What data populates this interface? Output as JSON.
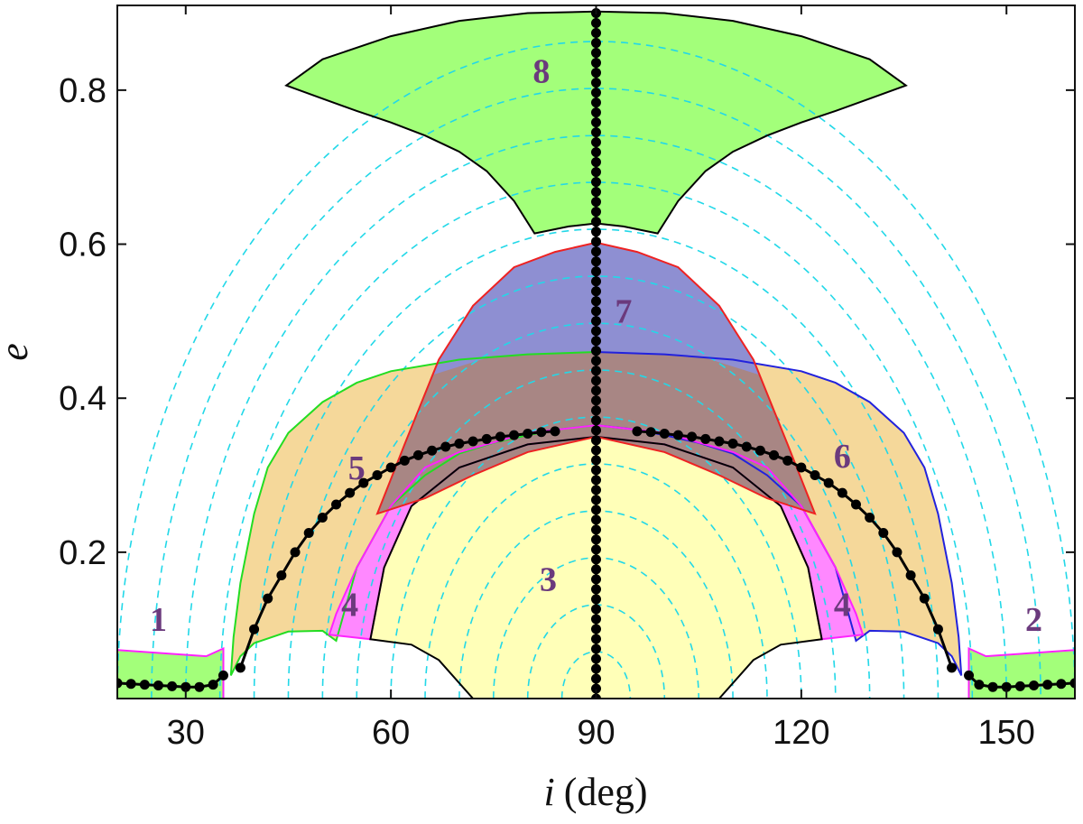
{
  "chart_data": {
    "type": "area",
    "title": "",
    "xlabel": {
      "var": "i",
      "unit": "(deg)"
    },
    "ylabel": "e",
    "xlim": [
      20,
      160
    ],
    "ylim": [
      0.01,
      0.91
    ],
    "xticks": [
      30,
      60,
      90,
      120,
      150
    ],
    "yticks": [
      0.2,
      0.4,
      0.6,
      0.8
    ],
    "grid": false,
    "legend": "none",
    "colors": {
      "green_fill": "#a3ff7a",
      "orange_fill": "#f5d89a",
      "magenta_fill": "#ff88ff",
      "yellow_fill": "#ffffb8",
      "blue_fill": "#8e8fd2",
      "brown_fill": "#a88684",
      "contour": "#22d8e8",
      "green_line": "#22dd22",
      "blue_line": "#2222dd",
      "red_line": "#ee2222",
      "magenta_line": "#ff22ff",
      "marker": "#000000",
      "label": "#6b3a7d"
    },
    "region_labels": [
      {
        "text": "1",
        "x": 26,
        "y": 0.098
      },
      {
        "text": "2",
        "x": 154,
        "y": 0.098
      },
      {
        "text": "3",
        "x": 83,
        "y": 0.15
      },
      {
        "text": "4",
        "x": 54,
        "y": 0.117
      },
      {
        "text": "4",
        "x": 126,
        "y": 0.117
      },
      {
        "text": "5",
        "x": 55,
        "y": 0.295
      },
      {
        "text": "6",
        "x": 126,
        "y": 0.31
      },
      {
        "text": "7",
        "x": 94,
        "y": 0.498
      },
      {
        "text": "8",
        "x": 82,
        "y": 0.81
      }
    ],
    "regions": [
      {
        "name": "region-8",
        "fill": "#a3ff7a",
        "stroke": "#000000",
        "points": [
          [
            44.7,
            0.806
          ],
          [
            50,
            0.789
          ],
          [
            55,
            0.773
          ],
          [
            60,
            0.758
          ],
          [
            65,
            0.741
          ],
          [
            70,
            0.72
          ],
          [
            74,
            0.695
          ],
          [
            78,
            0.656
          ],
          [
            81,
            0.614
          ],
          [
            86,
            0.623
          ],
          [
            90,
            0.627
          ],
          [
            94,
            0.623
          ],
          [
            99,
            0.614
          ],
          [
            102,
            0.656
          ],
          [
            106,
            0.695
          ],
          [
            110,
            0.72
          ],
          [
            115,
            0.741
          ],
          [
            120,
            0.758
          ],
          [
            125,
            0.773
          ],
          [
            130,
            0.789
          ],
          [
            135.3,
            0.806
          ],
          [
            130,
            0.84
          ],
          [
            120,
            0.87
          ],
          [
            110,
            0.89
          ],
          [
            100,
            0.9
          ],
          [
            90,
            0.902
          ],
          [
            80,
            0.9
          ],
          [
            70,
            0.89
          ],
          [
            60,
            0.87
          ],
          [
            50,
            0.84
          ]
        ]
      },
      {
        "name": "region-5",
        "fill": "#f5d89a",
        "stroke": "#22dd22",
        "points": [
          [
            36.6,
            0.04
          ],
          [
            38,
            0.065
          ],
          [
            40,
            0.082
          ],
          [
            45,
            0.097
          ],
          [
            50,
            0.098
          ],
          [
            52,
            0.085
          ],
          [
            55,
            0.18
          ],
          [
            60,
            0.26
          ],
          [
            65,
            0.3
          ],
          [
            70,
            0.328
          ],
          [
            75,
            0.342
          ],
          [
            80,
            0.352
          ],
          [
            85,
            0.36
          ],
          [
            90,
            0.365
          ],
          [
            90,
            0.46
          ],
          [
            80,
            0.457
          ],
          [
            70,
            0.45
          ],
          [
            60,
            0.435
          ],
          [
            55,
            0.42
          ],
          [
            50,
            0.395
          ],
          [
            45,
            0.355
          ],
          [
            42,
            0.31
          ],
          [
            40,
            0.25
          ],
          [
            38,
            0.16
          ],
          [
            37,
            0.09
          ]
        ]
      },
      {
        "name": "region-6",
        "fill": "#f5d89a",
        "stroke": "#2222dd",
        "points": [
          [
            90,
            0.46
          ],
          [
            100,
            0.457
          ],
          [
            110,
            0.45
          ],
          [
            120,
            0.435
          ],
          [
            125,
            0.42
          ],
          [
            130,
            0.395
          ],
          [
            135,
            0.355
          ],
          [
            138,
            0.31
          ],
          [
            140,
            0.25
          ],
          [
            142,
            0.16
          ],
          [
            143,
            0.09
          ],
          [
            143.4,
            0.04
          ],
          [
            142,
            0.065
          ],
          [
            140,
            0.082
          ],
          [
            135,
            0.097
          ],
          [
            130,
            0.098
          ],
          [
            128,
            0.085
          ],
          [
            125,
            0.18
          ],
          [
            120,
            0.26
          ],
          [
            115,
            0.3
          ],
          [
            110,
            0.328
          ],
          [
            105,
            0.342
          ],
          [
            100,
            0.352
          ],
          [
            95,
            0.36
          ],
          [
            90,
            0.365
          ]
        ]
      },
      {
        "name": "region-4-left",
        "fill": "#ff88ff",
        "stroke": "#ff22ff",
        "points": [
          [
            51,
            0.093
          ],
          [
            57,
            0.087
          ],
          [
            59,
            0.18
          ],
          [
            63,
            0.26
          ],
          [
            70,
            0.31
          ],
          [
            80,
            0.34
          ],
          [
            90,
            0.35
          ],
          [
            90,
            0.365
          ],
          [
            80,
            0.355
          ],
          [
            70,
            0.33
          ],
          [
            65,
            0.31
          ],
          [
            60,
            0.26
          ],
          [
            55,
            0.18
          ],
          [
            52,
            0.12
          ]
        ]
      },
      {
        "name": "region-4-right",
        "fill": "#ff88ff",
        "stroke": "#ff22ff",
        "points": [
          [
            90,
            0.35
          ],
          [
            100,
            0.34
          ],
          [
            110,
            0.31
          ],
          [
            117,
            0.26
          ],
          [
            121,
            0.18
          ],
          [
            123,
            0.087
          ],
          [
            129,
            0.093
          ],
          [
            128,
            0.12
          ],
          [
            125,
            0.18
          ],
          [
            120,
            0.26
          ],
          [
            115,
            0.31
          ],
          [
            110,
            0.33
          ],
          [
            100,
            0.355
          ],
          [
            90,
            0.365
          ]
        ]
      },
      {
        "name": "region-3",
        "fill": "#ffffb8",
        "stroke": "#000000",
        "points": [
          [
            72,
            0.01
          ],
          [
            67,
            0.06
          ],
          [
            63,
            0.08
          ],
          [
            57,
            0.087
          ],
          [
            59,
            0.18
          ],
          [
            63,
            0.26
          ],
          [
            70,
            0.31
          ],
          [
            80,
            0.34
          ],
          [
            90,
            0.35
          ],
          [
            100,
            0.34
          ],
          [
            110,
            0.31
          ],
          [
            117,
            0.26
          ],
          [
            121,
            0.18
          ],
          [
            123,
            0.087
          ],
          [
            117,
            0.08
          ],
          [
            113,
            0.06
          ],
          [
            108,
            0.01
          ]
        ]
      },
      {
        "name": "region-7",
        "fill": "#8e8fd2",
        "stroke": "#ee2222",
        "points": [
          [
            58,
            0.25
          ],
          [
            62,
            0.34
          ],
          [
            67,
            0.45
          ],
          [
            72,
            0.52
          ],
          [
            78,
            0.57
          ],
          [
            84,
            0.59
          ],
          [
            90,
            0.602
          ],
          [
            96,
            0.59
          ],
          [
            102,
            0.57
          ],
          [
            108,
            0.52
          ],
          [
            113,
            0.45
          ],
          [
            118,
            0.34
          ],
          [
            122,
            0.25
          ],
          [
            115,
            0.27
          ],
          [
            108,
            0.3
          ],
          [
            100,
            0.33
          ],
          [
            90,
            0.35
          ],
          [
            80,
            0.33
          ],
          [
            72,
            0.3
          ],
          [
            65,
            0.27
          ]
        ]
      },
      {
        "name": "region-1",
        "fill": "#a3ff7a",
        "stroke": "#ff22ff",
        "points": [
          [
            20,
            0.01
          ],
          [
            35.5,
            0.01
          ],
          [
            35.5,
            0.075
          ],
          [
            33,
            0.065
          ],
          [
            28,
            0.068
          ],
          [
            20,
            0.073
          ]
        ]
      },
      {
        "name": "region-2",
        "fill": "#a3ff7a",
        "stroke": "#ff22ff",
        "points": [
          [
            144.5,
            0.01
          ],
          [
            160,
            0.01
          ],
          [
            160,
            0.073
          ],
          [
            152,
            0.068
          ],
          [
            147,
            0.065
          ],
          [
            144.5,
            0.075
          ]
        ]
      }
    ],
    "overlap_fill": "#a88684",
    "contour_radii_deg": [
      5,
      10,
      15,
      20,
      25,
      30,
      35,
      40,
      45,
      50,
      55,
      60,
      65,
      70
    ],
    "contour_e_scale": 0.012,
    "black_curves": [
      {
        "name": "left-arc",
        "points": [
          [
            38,
            0.05
          ],
          [
            40,
            0.1
          ],
          [
            42,
            0.14
          ],
          [
            44,
            0.17
          ],
          [
            46,
            0.2
          ],
          [
            48,
            0.225
          ],
          [
            50,
            0.245
          ],
          [
            52,
            0.262
          ],
          [
            54,
            0.277
          ],
          [
            56,
            0.29
          ],
          [
            58,
            0.3
          ],
          [
            60,
            0.31
          ],
          [
            62,
            0.319
          ],
          [
            64,
            0.326
          ],
          [
            66,
            0.332
          ],
          [
            68,
            0.337
          ],
          [
            70,
            0.341
          ],
          [
            72,
            0.344
          ],
          [
            74,
            0.347
          ],
          [
            76,
            0.35
          ],
          [
            78,
            0.352
          ],
          [
            80,
            0.354
          ],
          [
            82,
            0.356
          ],
          [
            84,
            0.357
          ]
        ]
      },
      {
        "name": "right-arc",
        "points": [
          [
            96,
            0.357
          ],
          [
            98,
            0.356
          ],
          [
            100,
            0.354
          ],
          [
            102,
            0.352
          ],
          [
            104,
            0.35
          ],
          [
            106,
            0.347
          ],
          [
            108,
            0.344
          ],
          [
            110,
            0.341
          ],
          [
            112,
            0.337
          ],
          [
            114,
            0.332
          ],
          [
            116,
            0.326
          ],
          [
            118,
            0.319
          ],
          [
            120,
            0.31
          ],
          [
            122,
            0.3
          ],
          [
            124,
            0.29
          ],
          [
            126,
            0.277
          ],
          [
            128,
            0.262
          ],
          [
            130,
            0.245
          ],
          [
            132,
            0.225
          ],
          [
            134,
            0.2
          ],
          [
            136,
            0.17
          ],
          [
            138,
            0.14
          ],
          [
            140,
            0.1
          ],
          [
            142,
            0.05
          ]
        ]
      },
      {
        "name": "left-bottom",
        "points": [
          [
            20,
            0.03
          ],
          [
            22,
            0.029
          ],
          [
            24,
            0.028
          ],
          [
            26,
            0.027
          ],
          [
            28,
            0.026
          ],
          [
            30,
            0.025
          ],
          [
            32,
            0.025
          ],
          [
            34,
            0.028
          ],
          [
            35.5,
            0.04
          ]
        ]
      },
      {
        "name": "right-bottom",
        "points": [
          [
            144.5,
            0.04
          ],
          [
            146,
            0.028
          ],
          [
            148,
            0.025
          ],
          [
            150,
            0.025
          ],
          [
            152,
            0.026
          ],
          [
            154,
            0.027
          ],
          [
            156,
            0.028
          ],
          [
            158,
            0.029
          ],
          [
            160,
            0.03
          ]
        ]
      }
    ],
    "vertical_marker_line": {
      "x": 90,
      "ymin": 0.01,
      "ymax": 0.9,
      "count": 70
    }
  }
}
